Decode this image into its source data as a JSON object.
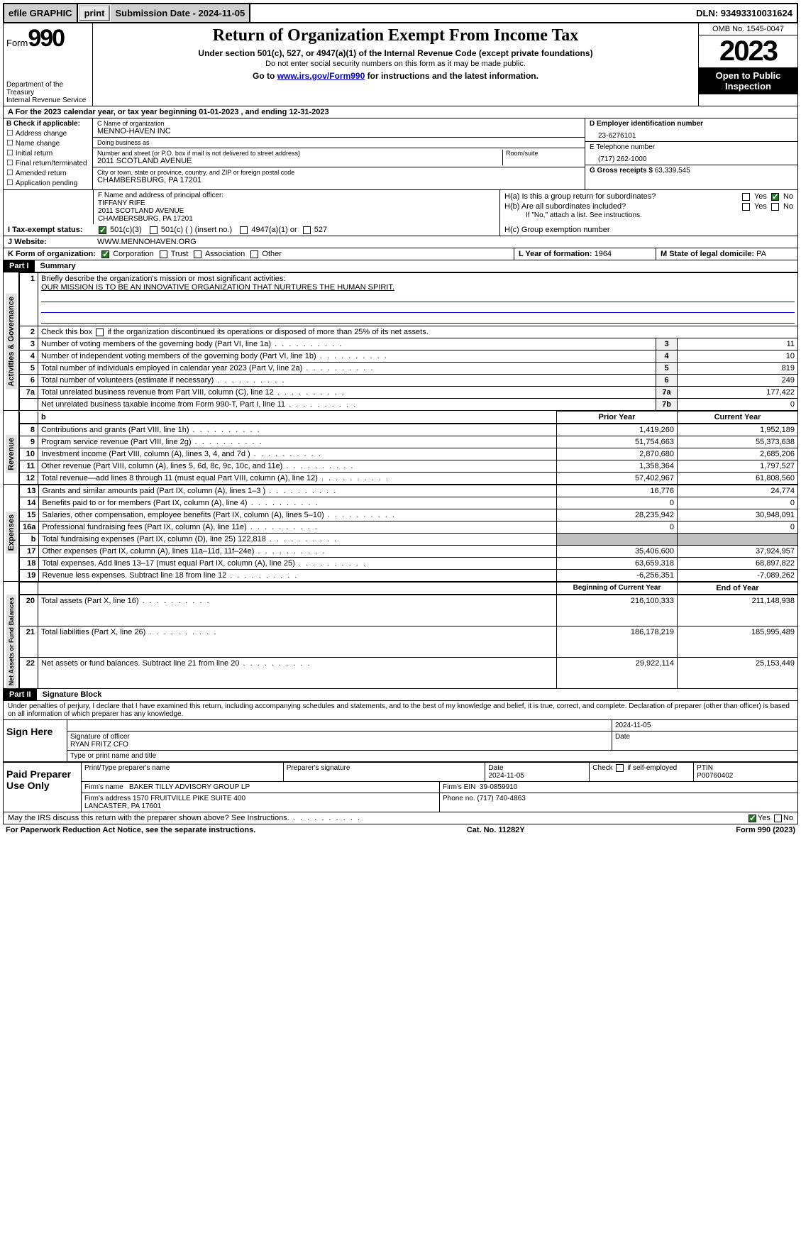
{
  "topbar": {
    "efile": "efile GRAPHIC",
    "print": "print",
    "submission": "Submission Date - 2024-11-05",
    "dln": "DLN: 93493310031624"
  },
  "header": {
    "form_label": "Form",
    "form_no": "990",
    "dept": "Department of the Treasury\nInternal Revenue Service",
    "title": "Return of Organization Exempt From Income Tax",
    "sub1": "Under section 501(c), 527, or 4947(a)(1) of the Internal Revenue Code (except private foundations)",
    "sub2": "Do not enter social security numbers on this form as it may be made public.",
    "sub3_pre": "Go to ",
    "sub3_link": "www.irs.gov/Form990",
    "sub3_post": " for instructions and the latest information.",
    "omb": "OMB No. 1545-0047",
    "year": "2023",
    "inspect": "Open to Public Inspection"
  },
  "row_a": "A For the 2023 calendar year, or tax year beginning 01-01-2023    , and ending 12-31-2023",
  "col_b": {
    "hdr": "B Check if applicable:",
    "items": [
      "Address change",
      "Name change",
      "Initial return",
      "Final return/terminated",
      "Amended return",
      "Application pending"
    ]
  },
  "col_c": {
    "name_lbl": "C Name of organization",
    "name": "MENNO-HAVEN INC",
    "dba_lbl": "Doing business as",
    "dba": "",
    "street_lbl": "Number and street (or P.O. box if mail is not delivered to street address)",
    "street": "2011 SCOTLAND AVENUE",
    "room_lbl": "Room/suite",
    "city_lbl": "City or town, state or province, country, and ZIP or foreign postal code",
    "city": "CHAMBERSBURG, PA  17201",
    "officer_lbl": "F  Name and address of principal officer:",
    "officer": "TIFFANY RIFE\n2011 SCOTLAND AVENUE\nCHAMBERSBURG, PA  17201"
  },
  "col_d": {
    "lbl": "D Employer identification number",
    "val": "23-6276101"
  },
  "col_e": {
    "lbl": "E Telephone number",
    "val": "(717) 262-1000"
  },
  "col_g": {
    "lbl": "G Gross receipts $",
    "val": "63,339,545"
  },
  "col_h": {
    "a": "H(a)  Is this a group return for subordinates?",
    "b": "H(b)  Are all subordinates included?",
    "b_note": "If \"No,\" attach a list. See instructions.",
    "c": "H(c)  Group exemption number",
    "yes": "Yes",
    "no": "No"
  },
  "tax_status": {
    "lbl": "I   Tax-exempt status:",
    "o1": "501(c)(3)",
    "o2": "501(c) (  ) (insert no.)",
    "o3": "4947(a)(1) or",
    "o4": "527"
  },
  "website": {
    "lbl": "J   Website:",
    "val": "WWW.MENNOHAVEN.ORG"
  },
  "row_k": {
    "lbl": "K Form of organization:",
    "opts": [
      "Corporation",
      "Trust",
      "Association",
      "Other"
    ],
    "l_lbl": "L Year of formation:",
    "l_val": "1964",
    "m_lbl": "M State of legal domicile:",
    "m_val": "PA"
  },
  "part1": {
    "hdr": "Part I",
    "title": "Summary"
  },
  "governance": {
    "vert": "Activities & Governance",
    "l1_lbl": "Briefly describe the organization's mission or most significant activities:",
    "l1_val": "OUR MISSION IS TO BE AN INNOVATIVE ORGANIZATION THAT NURTURES THE HUMAN SPIRIT.",
    "l2": "Check this box      if the organization discontinued its operations or disposed of more than 25% of its net assets.",
    "rows": [
      {
        "n": "3",
        "t": "Number of voting members of the governing body (Part VI, line 1a)",
        "b": "3",
        "v": "11"
      },
      {
        "n": "4",
        "t": "Number of independent voting members of the governing body (Part VI, line 1b)",
        "b": "4",
        "v": "10"
      },
      {
        "n": "5",
        "t": "Total number of individuals employed in calendar year 2023 (Part V, line 2a)",
        "b": "5",
        "v": "819"
      },
      {
        "n": "6",
        "t": "Total number of volunteers (estimate if necessary)",
        "b": "6",
        "v": "249"
      },
      {
        "n": "7a",
        "t": "Total unrelated business revenue from Part VIII, column (C), line 12",
        "b": "7a",
        "v": "177,422"
      },
      {
        "n": "",
        "t": "Net unrelated business taxable income from Form 990-T, Part I, line 11",
        "b": "7b",
        "v": "0"
      }
    ]
  },
  "yearcols": {
    "b_lbl": "b",
    "prior": "Prior Year",
    "current": "Current Year",
    "boy": "Beginning of Current Year",
    "eoy": "End of Year"
  },
  "revenue": {
    "vert": "Revenue",
    "rows": [
      {
        "n": "8",
        "t": "Contributions and grants (Part VIII, line 1h)",
        "p": "1,419,260",
        "c": "1,952,189"
      },
      {
        "n": "9",
        "t": "Program service revenue (Part VIII, line 2g)",
        "p": "51,754,663",
        "c": "55,373,638"
      },
      {
        "n": "10",
        "t": "Investment income (Part VIII, column (A), lines 3, 4, and 7d )",
        "p": "2,870,680",
        "c": "2,685,206"
      },
      {
        "n": "11",
        "t": "Other revenue (Part VIII, column (A), lines 5, 6d, 8c, 9c, 10c, and 11e)",
        "p": "1,358,364",
        "c": "1,797,527"
      },
      {
        "n": "12",
        "t": "Total revenue—add lines 8 through 11 (must equal Part VIII, column (A), line 12)",
        "p": "57,402,967",
        "c": "61,808,560"
      }
    ]
  },
  "expenses": {
    "vert": "Expenses",
    "rows": [
      {
        "n": "13",
        "t": "Grants and similar amounts paid (Part IX, column (A), lines 1–3 )",
        "p": "16,776",
        "c": "24,774"
      },
      {
        "n": "14",
        "t": "Benefits paid to or for members (Part IX, column (A), line 4)",
        "p": "0",
        "c": "0"
      },
      {
        "n": "15",
        "t": "Salaries, other compensation, employee benefits (Part IX, column (A), lines 5–10)",
        "p": "28,235,942",
        "c": "30,948,091"
      },
      {
        "n": "16a",
        "t": "Professional fundraising fees (Part IX, column (A), line 11e)",
        "p": "0",
        "c": "0"
      },
      {
        "n": "b",
        "t": "Total fundraising expenses (Part IX, column (D), line 25) 122,818",
        "p": "",
        "c": "",
        "shade": true
      },
      {
        "n": "17",
        "t": "Other expenses (Part IX, column (A), lines 11a–11d, 11f–24e)",
        "p": "35,406,600",
        "c": "37,924,957"
      },
      {
        "n": "18",
        "t": "Total expenses. Add lines 13–17 (must equal Part IX, column (A), line 25)",
        "p": "63,659,318",
        "c": "68,897,822"
      },
      {
        "n": "19",
        "t": "Revenue less expenses. Subtract line 18 from line 12",
        "p": "-6,256,351",
        "c": "-7,089,262"
      }
    ]
  },
  "netassets": {
    "vert": "Net Assets or Fund Balances",
    "rows": [
      {
        "n": "20",
        "t": "Total assets (Part X, line 16)",
        "p": "216,100,333",
        "c": "211,148,938"
      },
      {
        "n": "21",
        "t": "Total liabilities (Part X, line 26)",
        "p": "186,178,219",
        "c": "185,995,489"
      },
      {
        "n": "22",
        "t": "Net assets or fund balances. Subtract line 21 from line 20",
        "p": "29,922,114",
        "c": "25,153,449"
      }
    ]
  },
  "part2": {
    "hdr": "Part II",
    "title": "Signature Block"
  },
  "perjury": "Under penalties of perjury, I declare that I have examined this return, including accompanying schedules and statements, and to the best of my knowledge and belief, it is true, correct, and complete. Declaration of preparer (other than officer) is based on all information of which preparer has any knowledge.",
  "sign": {
    "here": "Sign Here",
    "sig_officer_lbl": "Signature of officer",
    "officer_name": "RYAN FRITZ  CFO",
    "name_title_lbl": "Type or print name and title",
    "date_lbl": "Date",
    "date": "2024-11-05"
  },
  "preparer": {
    "lbl": "Paid Preparer Use Only",
    "name_lbl": "Print/Type preparer's name",
    "sig_lbl": "Preparer's signature",
    "date_lbl": "Date",
    "date": "2024-11-05",
    "self_lbl": "Check        if self-employed",
    "ptin_lbl": "PTIN",
    "ptin": "P00760402",
    "firm_name_lbl": "Firm's name",
    "firm_name": "BAKER TILLY ADVISORY GROUP LP",
    "firm_ein_lbl": "Firm's EIN",
    "firm_ein": "39-0859910",
    "firm_addr_lbl": "Firm's address",
    "firm_addr": "1570 FRUITVILLE PIKE SUITE 400\nLANCASTER, PA  17601",
    "phone_lbl": "Phone no.",
    "phone": "(717) 740-4863"
  },
  "discuss": "May the IRS discuss this return with the preparer shown above? See Instructions.",
  "footer": {
    "l": "For Paperwork Reduction Act Notice, see the separate instructions.",
    "c": "Cat. No. 11282Y",
    "r": "Form 990 (2023)"
  }
}
